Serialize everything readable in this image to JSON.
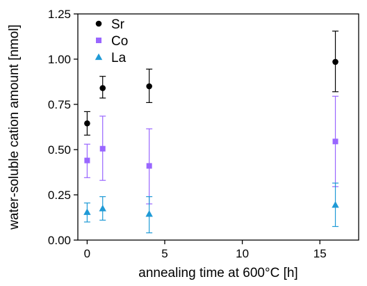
{
  "chart_data": {
    "type": "scatter",
    "xlabel": "annealing time at 600°C [h]",
    "ylabel": "water-soluble cation amount [nmol]",
    "xlim": [
      -0.6,
      17.5
    ],
    "ylim": [
      0,
      1.25
    ],
    "x_ticks": [
      0,
      5,
      10,
      15
    ],
    "x_tick_labels": [
      "0",
      "5",
      "10",
      "15"
    ],
    "y_ticks": [
      0,
      0.25,
      0.5,
      0.75,
      1.0,
      1.25
    ],
    "y_tick_labels": [
      "0.00",
      "0.25",
      "0.50",
      "0.75",
      "1.00",
      "1.25"
    ],
    "grid": false,
    "legend_position": "top-left",
    "series": [
      {
        "name": "Sr",
        "marker": "circle",
        "color": "#000000",
        "points": [
          {
            "x": 0,
            "y": 0.645,
            "err_low": 0.58,
            "err_high": 0.71
          },
          {
            "x": 1,
            "y": 0.84,
            "err_low": 0.785,
            "err_high": 0.905
          },
          {
            "x": 4,
            "y": 0.85,
            "err_low": 0.76,
            "err_high": 0.945
          },
          {
            "x": 16,
            "y": 0.985,
            "err_low": 0.82,
            "err_high": 1.155
          }
        ]
      },
      {
        "name": "Co",
        "marker": "square",
        "color": "#9966ff",
        "points": [
          {
            "x": 0,
            "y": 0.44,
            "err_low": 0.345,
            "err_high": 0.53
          },
          {
            "x": 1,
            "y": 0.505,
            "err_low": 0.33,
            "err_high": 0.685
          },
          {
            "x": 4,
            "y": 0.41,
            "err_low": 0.2,
            "err_high": 0.615
          },
          {
            "x": 16,
            "y": 0.545,
            "err_low": 0.295,
            "err_high": 0.795
          }
        ]
      },
      {
        "name": "La",
        "marker": "triangle",
        "color": "#1f9ad6",
        "points": [
          {
            "x": 0,
            "y": 0.155,
            "err_low": 0.1,
            "err_high": 0.205
          },
          {
            "x": 1,
            "y": 0.175,
            "err_low": 0.11,
            "err_high": 0.24
          },
          {
            "x": 4,
            "y": 0.145,
            "err_low": 0.04,
            "err_high": 0.24
          },
          {
            "x": 16,
            "y": 0.195,
            "err_low": 0.075,
            "err_high": 0.315
          }
        ]
      }
    ]
  }
}
